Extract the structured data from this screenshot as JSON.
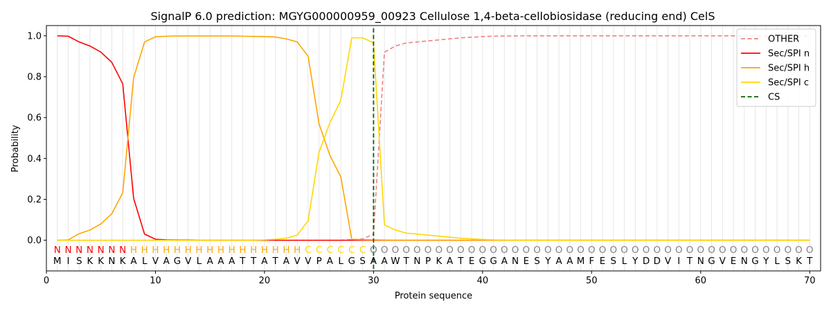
{
  "chart_data": {
    "type": "line",
    "title": "SignalP 6.0 prediction: MGYG000000959_00923 Cellulose 1,4-beta-cellobiosidase (reducing end) CelS",
    "xlabel": "Protein sequence",
    "ylabel": "Probability",
    "xlim": [
      0,
      71
    ],
    "ylim": [
      -0.15,
      1.05
    ],
    "xticks": [
      0,
      10,
      20,
      30,
      40,
      50,
      60,
      70
    ],
    "yticks": [
      0.0,
      0.2,
      0.4,
      0.6,
      0.8,
      1.0
    ],
    "ytick_labels": [
      "0.0",
      "0.2",
      "0.4",
      "0.6",
      "0.8",
      "1.0"
    ],
    "legend_position": "top-right",
    "sequence": "MISKKNKALVAGVLAAATTATAVVPALGSAAWTNPKATEGGANESYAAMFESLYDDVITNGVENGYLSKT",
    "labels": "NNNNNNNHHHHHHHHHHHHHHHHCCCCCCOOOOOOOOOOOOOOOOOOOOOOOOOOOOOOOOOOOOOOOOO",
    "label_colors": {
      "N": "#ff0000",
      "H": "#ffa500",
      "C": "#ffd700",
      "O": "#808080"
    },
    "cleavage_site": 30,
    "series": [
      {
        "name": "OTHER",
        "color": "#f08080",
        "style": "dashed",
        "values": [
          0,
          0,
          0,
          0,
          0,
          0,
          0,
          0,
          0,
          0,
          0,
          0,
          0,
          0,
          0,
          0,
          0,
          0,
          0,
          0,
          0,
          0,
          0,
          0,
          0,
          0,
          0,
          0.003,
          0.006,
          0.03,
          0.92,
          0.95,
          0.965,
          0.97,
          0.975,
          0.98,
          0.985,
          0.99,
          0.993,
          0.996,
          0.998,
          0.999,
          0.9995,
          1,
          1,
          1,
          1,
          1,
          1,
          1,
          1,
          1,
          1,
          1,
          1,
          1,
          1,
          1,
          1,
          1,
          1,
          1,
          1,
          1,
          1,
          1,
          1,
          1,
          1,
          1
        ]
      },
      {
        "name": "Sec/SPI n",
        "color": "#ff0000",
        "style": "solid",
        "values": [
          1.0,
          0.998,
          0.97,
          0.95,
          0.92,
          0.87,
          0.765,
          0.205,
          0.03,
          0.005,
          0.002,
          0.001,
          0.001,
          0,
          0,
          0,
          0,
          0,
          0,
          0,
          0,
          0,
          0,
          0,
          0,
          0,
          0,
          0,
          0,
          0,
          0,
          0,
          0,
          0,
          0,
          0,
          0,
          0,
          0,
          0,
          0,
          0,
          0,
          0,
          0,
          0,
          0,
          0,
          0,
          0,
          0,
          0,
          0,
          0,
          0,
          0,
          0,
          0,
          0,
          0,
          0,
          0,
          0,
          0,
          0,
          0,
          0,
          0,
          0,
          0
        ]
      },
      {
        "name": "Sec/SPI h",
        "color": "#ffa500",
        "style": "solid",
        "values": [
          0,
          0.002,
          0.032,
          0.05,
          0.08,
          0.13,
          0.232,
          0.795,
          0.97,
          0.995,
          0.998,
          0.999,
          0.999,
          0.999,
          0.999,
          0.999,
          0.999,
          0.998,
          0.997,
          0.996,
          0.994,
          0.985,
          0.97,
          0.9,
          0.57,
          0.415,
          0.31,
          0.005,
          0.003,
          0.002,
          0.001,
          0,
          0,
          0,
          0,
          0,
          0,
          0,
          0,
          0,
          0,
          0,
          0,
          0,
          0,
          0,
          0,
          0,
          0,
          0,
          0,
          0,
          0,
          0,
          0,
          0,
          0,
          0,
          0,
          0,
          0,
          0,
          0,
          0,
          0,
          0,
          0,
          0,
          0,
          0
        ]
      },
      {
        "name": "Sec/SPI c",
        "color": "#ffd700",
        "style": "solid",
        "values": [
          0,
          0,
          0,
          0,
          0,
          0,
          0,
          0,
          0,
          0,
          0,
          0,
          0,
          0,
          0,
          0,
          0,
          0,
          0,
          0.002,
          0.005,
          0.01,
          0.025,
          0.095,
          0.43,
          0.575,
          0.685,
          0.99,
          0.99,
          0.965,
          0.075,
          0.05,
          0.035,
          0.03,
          0.025,
          0.02,
          0.015,
          0.01,
          0.007,
          0.004,
          0.002,
          0.001,
          0,
          0,
          0,
          0,
          0,
          0,
          0,
          0,
          0,
          0,
          0,
          0,
          0,
          0,
          0,
          0,
          0,
          0,
          0,
          0,
          0,
          0,
          0,
          0,
          0,
          0,
          0,
          0
        ]
      },
      {
        "name": "CS",
        "color": "#006400",
        "style": "dashed",
        "values": []
      }
    ]
  }
}
